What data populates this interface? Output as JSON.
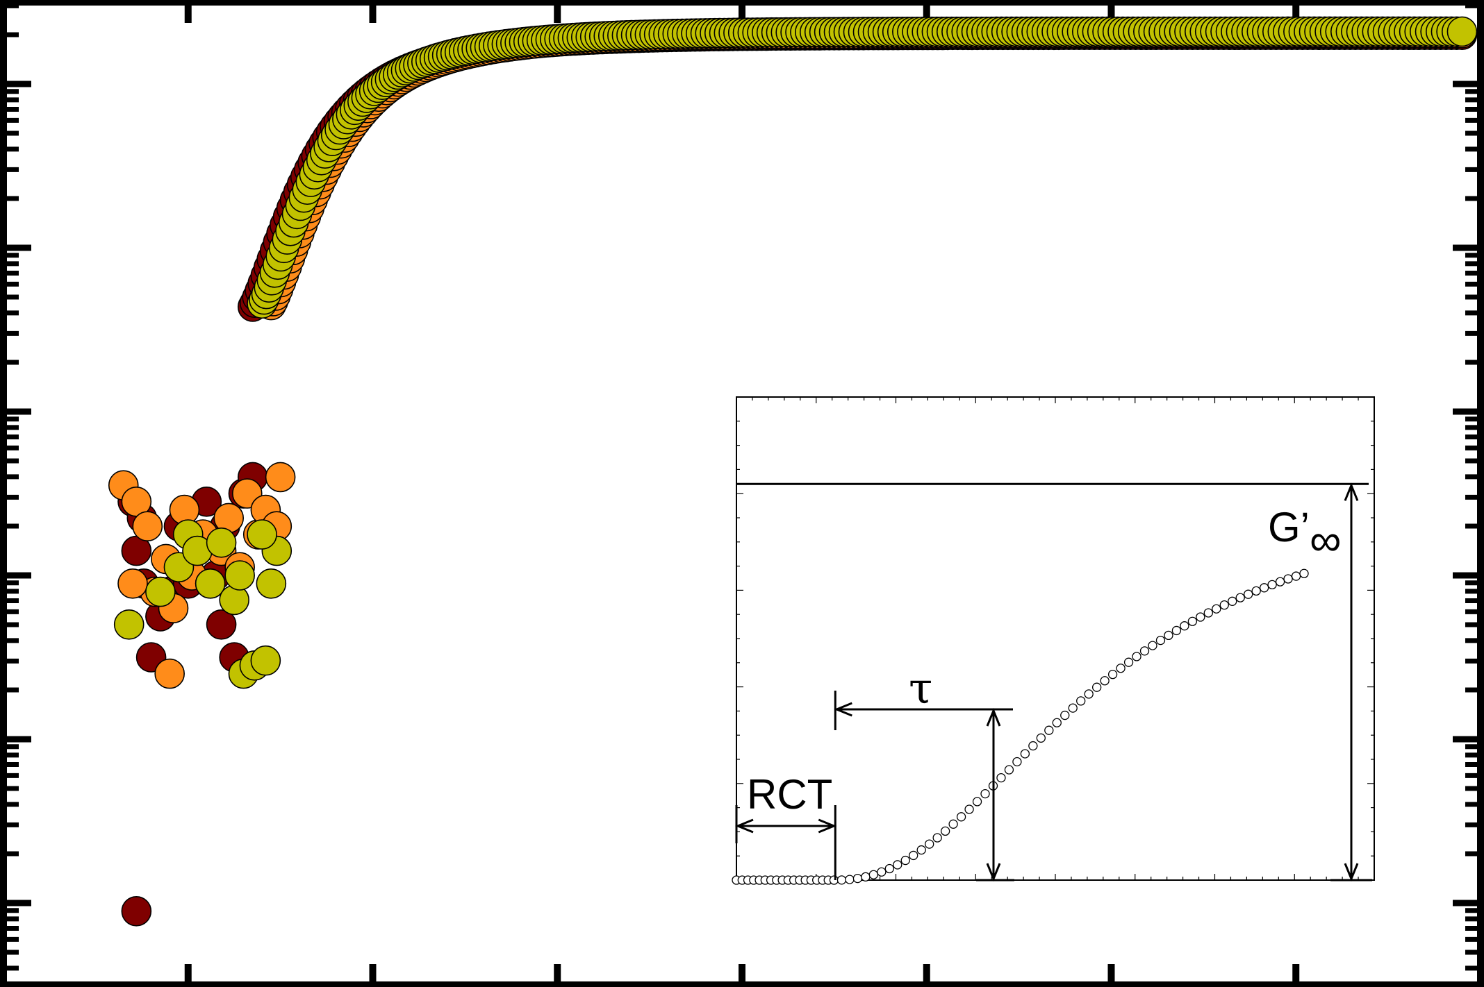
{
  "chart_data": [
    {
      "type": "scatter",
      "title": "",
      "xlabel": "",
      "ylabel": "",
      "x_scale": "linear",
      "y_scale": "log",
      "grid": false,
      "legend": "none",
      "tick_labels_visible": false,
      "xlim": [
        0,
        8
      ],
      "ylim": [
        -0.5,
        5.5
      ],
      "series": [
        {
          "color": "#7f0000"
        },
        {
          "color": "#ff8c1a"
        },
        {
          "color": "#c2c200"
        }
      ],
      "noise_points": [
        [
          [
            0.7,
            2.45
          ],
          [
            0.72,
            2.15
          ],
          [
            0.76,
            1.95
          ],
          [
            0.8,
            1.5
          ],
          [
            0.85,
            1.75
          ],
          [
            0.9,
            1.9
          ],
          [
            0.95,
            2.3
          ],
          [
            1.0,
            1.95
          ],
          [
            1.05,
            2.15
          ],
          [
            1.1,
            2.45
          ],
          [
            1.15,
            2.0
          ],
          [
            1.18,
            1.7
          ],
          [
            1.2,
            2.3
          ],
          [
            1.25,
            1.5
          ],
          [
            1.3,
            2.5
          ],
          [
            1.35,
            2.6
          ],
          [
            0.72,
            -0.05
          ],
          [
            0.75,
            2.35
          ]
        ],
        [
          [
            0.65,
            2.55
          ],
          [
            0.72,
            2.45
          ],
          [
            0.78,
            2.3
          ],
          [
            0.82,
            1.9
          ],
          [
            0.88,
            2.1
          ],
          [
            0.92,
            1.8
          ],
          [
            0.98,
            2.4
          ],
          [
            1.02,
            2.0
          ],
          [
            1.08,
            2.25
          ],
          [
            1.12,
            1.95
          ],
          [
            1.18,
            2.15
          ],
          [
            1.22,
            2.35
          ],
          [
            1.28,
            2.05
          ],
          [
            1.32,
            2.5
          ],
          [
            1.38,
            2.25
          ],
          [
            1.42,
            2.4
          ],
          [
            0.9,
            1.4
          ],
          [
            0.7,
            1.95
          ],
          [
            1.5,
            2.6
          ],
          [
            1.48,
            2.3
          ]
        ],
        [
          [
            0.68,
            1.7
          ],
          [
            0.85,
            1.9
          ],
          [
            0.95,
            2.05
          ],
          [
            1.0,
            2.25
          ],
          [
            1.05,
            2.15
          ],
          [
            1.12,
            1.95
          ],
          [
            1.18,
            2.2
          ],
          [
            1.25,
            1.85
          ],
          [
            1.28,
            2.0
          ],
          [
            1.3,
            1.4
          ],
          [
            1.36,
            1.45
          ],
          [
            1.42,
            1.48
          ],
          [
            1.45,
            1.95
          ],
          [
            1.48,
            2.15
          ],
          [
            1.4,
            2.25
          ]
        ]
      ],
      "curves": [
        {
          "t0": 1.35,
          "A": 4.42,
          "b": 0.88,
          "k": 1.85
        },
        {
          "t0": 1.45,
          "A": 4.43,
          "b": 0.88,
          "k": 1.85
        },
        {
          "t0": 1.4,
          "A": 4.44,
          "b": 0.88,
          "k": 1.85
        }
      ],
      "curve_x_end": 7.9
    },
    {
      "type": "scatter",
      "title": "",
      "xlabel": "",
      "ylabel": "",
      "grid": false,
      "legend": "none",
      "xlim": [
        0,
        1
      ],
      "ylim": [
        0,
        1
      ],
      "series": [
        {
          "color": "#ffffff"
        }
      ],
      "rct_end": 0.155,
      "curve": {
        "G_inf": 0.82,
        "k": 0.0,
        "p": 2.0,
        "a": 0.0
      },
      "g_inf_level": 0.82,
      "tau_point": [
        0.405,
        0.345
      ],
      "last_point": [
        0.895,
        0.645
      ],
      "annotations": {
        "rct": "RCT",
        "tau": "τ",
        "g_inf": "G’",
        "g_inf_sub": "∞"
      }
    }
  ]
}
